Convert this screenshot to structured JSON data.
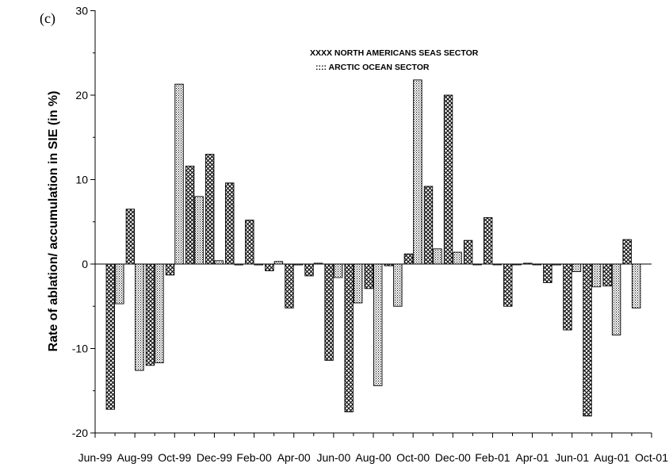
{
  "chart_data": {
    "type": "bar",
    "panel_label": "(c)",
    "ylabel": "Rate of ablation/ accumulation in SIE (in %)",
    "xlabel": "",
    "ylim": [
      -20,
      30
    ],
    "yticks": [
      -20,
      -10,
      0,
      10,
      20,
      30
    ],
    "xtick_labels": [
      "Jun-99",
      "Aug-99",
      "Oct-99",
      "Dec-99",
      "Feb-00",
      "Apr-00",
      "Jun-00",
      "Aug-00",
      "Oct-00",
      "Dec-00",
      "Feb-01",
      "Apr-01",
      "Jun-01",
      "Aug-01",
      "Oct-01"
    ],
    "categories": [
      "Jul-99",
      "Aug-99",
      "Sep-99",
      "Oct-99",
      "Nov-99",
      "Dec-99",
      "Jan-00",
      "Feb-00",
      "Mar-00",
      "Apr-00",
      "May-00",
      "Jun-00",
      "Jul-00",
      "Aug-00",
      "Sep-00",
      "Oct-00",
      "Nov-00",
      "Dec-00",
      "Jan-01",
      "Feb-01",
      "Mar-01",
      "Apr-01",
      "May-01",
      "Jun-01",
      "Jul-01",
      "Aug-01",
      "Sep-01"
    ],
    "legend_position": "top-right",
    "series": [
      {
        "name": "XXXX NORTH AMERICANS SEAS SECTOR",
        "pattern": "crosshatch",
        "values": [
          -17.2,
          6.5,
          -12.0,
          -1.3,
          11.6,
          13.0,
          9.6,
          5.2,
          -0.8,
          -5.2,
          -1.4,
          -11.4,
          -17.5,
          -2.9,
          -0.2,
          1.2,
          9.2,
          20.0,
          2.8,
          5.5,
          -5.0,
          0.1,
          -2.2,
          -7.8,
          -18.0,
          -2.6,
          2.9
        ]
      },
      {
        "name": ":::: ARCTIC OCEAN SECTOR",
        "pattern": "dotted",
        "values": [
          -4.7,
          -12.6,
          -11.7,
          21.3,
          8.0,
          0.4,
          -0.1,
          -0.1,
          0.3,
          -0.1,
          0.1,
          -1.6,
          -4.6,
          -14.4,
          -5.0,
          21.8,
          1.8,
          1.4,
          0.0,
          0.0,
          0.0,
          0.0,
          -0.1,
          -0.9,
          -2.7,
          -8.4,
          -5.2
        ]
      }
    ]
  }
}
